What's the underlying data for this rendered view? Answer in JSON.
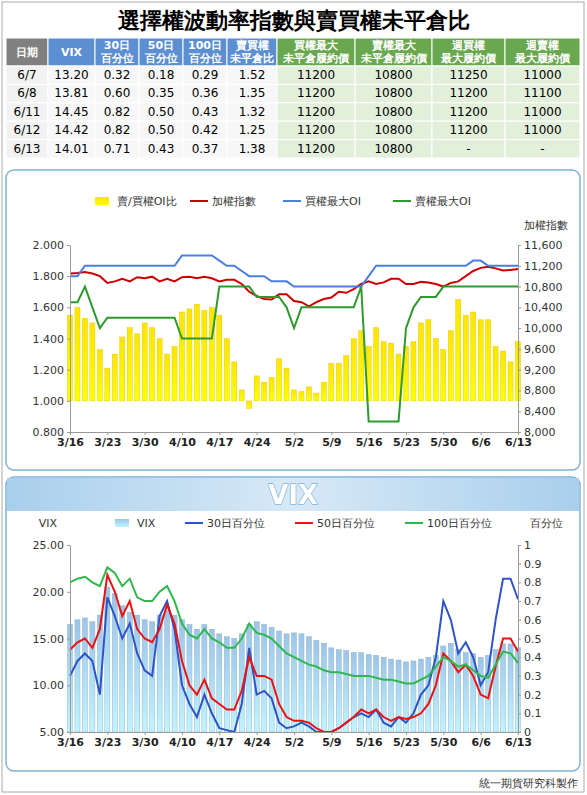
{
  "title": "選擇權波動率指數與賣買權未平倉比",
  "table": {
    "header": [
      [
        "日期"
      ],
      [
        "VIX"
      ],
      [
        "30日",
        "百分位"
      ],
      [
        "50日",
        "百分位"
      ],
      [
        "100日",
        "百分位"
      ],
      [
        "賣買權",
        "未平倉比"
      ],
      [
        "買權最大",
        "未平倉履約價"
      ],
      [
        "賣權最大",
        "未平倉履約價"
      ],
      [
        "週買權",
        "最大履約價"
      ],
      [
        "週賣權",
        "最大履約價"
      ]
    ],
    "rows": [
      [
        "6/7",
        "13.20",
        "0.32",
        "0.18",
        "0.29",
        "1.52",
        "11200",
        "10800",
        "11250",
        "11000"
      ],
      [
        "6/8",
        "13.81",
        "0.60",
        "0.35",
        "0.36",
        "1.35",
        "11200",
        "10800",
        "11200",
        "11100"
      ],
      [
        "6/11",
        "14.45",
        "0.82",
        "0.50",
        "0.43",
        "1.32",
        "11200",
        "10800",
        "11200",
        "11000"
      ],
      [
        "6/12",
        "14.42",
        "0.82",
        "0.50",
        "0.42",
        "1.25",
        "11200",
        "10800",
        "11200",
        "11000"
      ],
      [
        "6/13",
        "14.01",
        "0.71",
        "0.43",
        "0.37",
        "1.38",
        "11200",
        "10800",
        "-",
        "-"
      ]
    ]
  },
  "chart_data": [
    {
      "type": "bar",
      "legend": "top",
      "categories": [
        "3/16",
        null,
        null,
        null,
        null,
        "3/23",
        null,
        null,
        null,
        null,
        "3/30",
        null,
        null,
        null,
        null,
        "4/10",
        null,
        null,
        null,
        null,
        "4/17",
        null,
        null,
        null,
        null,
        "4/24",
        null,
        null,
        null,
        null,
        "5/2",
        null,
        null,
        null,
        null,
        "5/9",
        null,
        null,
        null,
        null,
        "5/16",
        null,
        null,
        null,
        null,
        "5/23",
        null,
        null,
        null,
        null,
        "5/30",
        null,
        null,
        null,
        null,
        "6/6",
        null,
        null,
        null,
        null,
        "6/13"
      ],
      "ylim": [
        0.8,
        2
      ],
      "yticks": [
        {
          "value": 0.8,
          "label": "0.800"
        },
        {
          "value": 1,
          "label": "1.000"
        },
        {
          "value": 1.2,
          "label": "1.200"
        },
        {
          "value": 1.4,
          "label": "1.400"
        },
        {
          "value": 1.6,
          "label": "1.600"
        },
        {
          "value": 1.8,
          "label": "1.800"
        },
        {
          "value": 2,
          "label": "2.000"
        }
      ],
      "y2lim": [
        8000,
        11600
      ],
      "y2ticks": [
        {
          "value": 8000,
          "label": "8,000"
        },
        {
          "value": 8400,
          "label": "8,400"
        },
        {
          "value": 8800,
          "label": "8,800"
        },
        {
          "value": 9200,
          "label": "9,200"
        },
        {
          "value": 9600,
          "label": "9,600"
        },
        {
          "value": 10000,
          "label": "10,000"
        },
        {
          "value": 10400,
          "label": "10,400"
        },
        {
          "value": 10800,
          "label": "10,800"
        },
        {
          "value": 11200,
          "label": "11,200"
        },
        {
          "value": 11600,
          "label": "11,600"
        }
      ],
      "y2label": "加權指數",
      "series": [
        {
          "name": "賣/買權OI比",
          "type": "bar",
          "color": "#ffe400",
          "base": 1,
          "values": [
            1.55,
            1.6,
            1.53,
            1.5,
            1.33,
            1.21,
            1.3,
            1.41,
            1.47,
            1.43,
            1.5,
            1.47,
            1.4,
            1.3,
            1.35,
            1.57,
            1.59,
            1.62,
            1.58,
            1.6,
            1.55,
            1.4,
            1.25,
            1.07,
            0.95,
            1.16,
            1.12,
            1.15,
            1.27,
            1.21,
            1.07,
            1.06,
            1.09,
            1.05,
            1.12,
            1.24,
            1.24,
            1.29,
            1.4,
            1.45,
            1.35,
            1.47,
            1.38,
            1.37,
            1.3,
            1.35,
            1.38,
            1.5,
            1.52,
            1.4,
            1.33,
            1.45,
            1.65,
            1.55,
            1.57,
            1.52,
            1.52,
            1.35,
            1.32,
            1.25,
            1.38
          ]
        },
        {
          "name": "加權指數",
          "type": "line",
          "axis": "y2",
          "color": "#cc0000",
          "values": [
            11050,
            11060,
            11080,
            11050,
            11000,
            10870,
            10900,
            10950,
            10900,
            10980,
            10960,
            10990,
            10900,
            10950,
            10900,
            10980,
            10990,
            10960,
            10990,
            10960,
            10900,
            10930,
            10930,
            10850,
            10700,
            10620,
            10560,
            10550,
            10650,
            10650,
            10520,
            10500,
            10420,
            10500,
            10560,
            10590,
            10700,
            10680,
            10750,
            10850,
            10900,
            10850,
            10880,
            10950,
            10950,
            10850,
            10850,
            10890,
            10880,
            10850,
            10800,
            10870,
            10900,
            11000,
            11100,
            11160,
            11180,
            11150,
            11110,
            11120,
            11140
          ]
        },
        {
          "name": "買權最大OI",
          "type": "line",
          "axis": "y2",
          "color": "#4a7ee0",
          "values": [
            11000,
            11000,
            11200,
            11200,
            11200,
            11200,
            11200,
            11200,
            11200,
            11200,
            11200,
            11200,
            11200,
            11200,
            11200,
            11400,
            11400,
            11400,
            11400,
            11400,
            11300,
            11200,
            11200,
            11100,
            11000,
            11000,
            11000,
            10900,
            10900,
            10900,
            10800,
            10800,
            10800,
            10800,
            10800,
            10800,
            10800,
            10800,
            10800,
            10800,
            11000,
            11200,
            11200,
            11200,
            11200,
            11200,
            11200,
            11200,
            11200,
            11200,
            11200,
            11200,
            11200,
            11200,
            11300,
            11300,
            11200,
            11200,
            11200,
            11200,
            11200
          ]
        },
        {
          "name": "賣權最大OI",
          "type": "line",
          "axis": "y2",
          "color": "#2e9a2e",
          "values": [
            10500,
            10500,
            10800,
            10400,
            10000,
            10200,
            10200,
            10200,
            10200,
            10200,
            10200,
            10200,
            10200,
            10200,
            10200,
            9800,
            9800,
            9800,
            9800,
            9800,
            10800,
            10800,
            10800,
            10800,
            10800,
            10600,
            10600,
            10600,
            10600,
            10400,
            10000,
            10400,
            10400,
            10400,
            10400,
            10400,
            10400,
            10400,
            10400,
            10800,
            8200,
            8200,
            8200,
            8200,
            8200,
            10000,
            10400,
            10600,
            10600,
            10600,
            10800,
            10800,
            10800,
            10800,
            10800,
            10800,
            10800,
            10800,
            10800,
            10800,
            10800
          ]
        }
      ]
    },
    {
      "type": "bar",
      "title": "VIX",
      "legend": "top",
      "categories": [
        "3/16",
        null,
        null,
        null,
        null,
        "3/23",
        null,
        null,
        null,
        null,
        "3/30",
        null,
        null,
        null,
        null,
        "4/10",
        null,
        null,
        null,
        null,
        "4/17",
        null,
        null,
        null,
        null,
        "4/24",
        null,
        null,
        null,
        null,
        "5/2",
        null,
        null,
        null,
        null,
        "5/9",
        null,
        null,
        null,
        null,
        "5/16",
        null,
        null,
        null,
        null,
        "5/23",
        null,
        null,
        null,
        null,
        "5/30",
        null,
        null,
        null,
        null,
        "6/6",
        null,
        null,
        null,
        null,
        "6/13"
      ],
      "ylim": [
        5,
        25
      ],
      "yticks": [
        {
          "value": 5,
          "label": "5.00"
        },
        {
          "value": 10,
          "label": "10.00"
        },
        {
          "value": 15,
          "label": "15.00"
        },
        {
          "value": 20,
          "label": "20.00"
        },
        {
          "value": 25,
          "label": "25.00"
        }
      ],
      "y2lim": [
        0,
        1
      ],
      "y2ticks": [
        0,
        0.1,
        0.2,
        0.3,
        0.4,
        0.5,
        0.6,
        0.7,
        0.8,
        0.9,
        1
      ],
      "ylabel": "VIX",
      "y2label": "百分位",
      "series": [
        {
          "name": "VIX",
          "type": "bar",
          "color": "#9cc5e8",
          "values": [
            16.5,
            17.0,
            17.2,
            16.8,
            17.5,
            20.5,
            19.8,
            18.5,
            17.8,
            17.5,
            17.0,
            16.8,
            17.5,
            18.0,
            17.5,
            17.0,
            16.5,
            16.0,
            16.5,
            16.0,
            15.5,
            15.2,
            15.0,
            15.5,
            16.5,
            16.8,
            16.5,
            16.2,
            15.8,
            15.5,
            15.6,
            15.5,
            15.2,
            14.8,
            14.5,
            14.0,
            13.8,
            13.7,
            13.5,
            13.5,
            13.3,
            13.2,
            13.0,
            12.8,
            12.7,
            12.5,
            12.6,
            12.8,
            13.0,
            13.2,
            14.2,
            14.5,
            13.8,
            13.5,
            13.4,
            13.0,
            13.2,
            13.81,
            14.45,
            14.42,
            14.01
          ]
        },
        {
          "name": "30日百分位",
          "type": "line",
          "axis": "y2",
          "color": "#2e54c6",
          "values": [
            0.3,
            0.38,
            0.42,
            0.38,
            0.2,
            0.72,
            0.62,
            0.5,
            0.58,
            0.42,
            0.33,
            0.3,
            0.62,
            0.7,
            0.55,
            0.25,
            0.15,
            0.08,
            0.2,
            0.1,
            0.02,
            0.01,
            0.0,
            0.15,
            0.45,
            0.2,
            0.22,
            0.18,
            0.05,
            0.02,
            0.03,
            0.05,
            0.03,
            0.0,
            0.0,
            0.0,
            0.02,
            0.05,
            0.08,
            0.1,
            0.08,
            0.12,
            0.05,
            0.03,
            0.08,
            0.05,
            0.1,
            0.2,
            0.25,
            0.4,
            0.7,
            0.6,
            0.42,
            0.48,
            0.4,
            0.25,
            0.32,
            0.6,
            0.82,
            0.82,
            0.71
          ]
        },
        {
          "name": "50日百分位",
          "type": "line",
          "axis": "y2",
          "color": "#ee1111",
          "values": [
            0.44,
            0.48,
            0.5,
            0.45,
            0.55,
            0.84,
            0.75,
            0.62,
            0.7,
            0.55,
            0.5,
            0.48,
            0.55,
            0.68,
            0.58,
            0.38,
            0.25,
            0.2,
            0.28,
            0.18,
            0.15,
            0.12,
            0.12,
            0.22,
            0.4,
            0.3,
            0.3,
            0.28,
            0.15,
            0.08,
            0.06,
            0.06,
            0.05,
            0.02,
            0.0,
            0.0,
            0.02,
            0.05,
            0.08,
            0.12,
            0.1,
            0.12,
            0.08,
            0.06,
            0.08,
            0.07,
            0.08,
            0.1,
            0.15,
            0.25,
            0.42,
            0.38,
            0.32,
            0.36,
            0.3,
            0.2,
            0.18,
            0.35,
            0.5,
            0.5,
            0.43
          ]
        },
        {
          "name": "100日百分位",
          "type": "line",
          "axis": "y2",
          "color": "#2eb84c",
          "values": [
            0.8,
            0.82,
            0.83,
            0.8,
            0.78,
            0.88,
            0.85,
            0.78,
            0.82,
            0.72,
            0.7,
            0.7,
            0.75,
            0.78,
            0.7,
            0.58,
            0.52,
            0.5,
            0.55,
            0.5,
            0.48,
            0.45,
            0.45,
            0.5,
            0.58,
            0.53,
            0.52,
            0.5,
            0.46,
            0.42,
            0.4,
            0.38,
            0.36,
            0.35,
            0.33,
            0.32,
            0.32,
            0.31,
            0.3,
            0.3,
            0.3,
            0.29,
            0.28,
            0.28,
            0.27,
            0.26,
            0.26,
            0.28,
            0.3,
            0.35,
            0.4,
            0.38,
            0.35,
            0.36,
            0.33,
            0.3,
            0.29,
            0.36,
            0.43,
            0.42,
            0.37
          ]
        }
      ]
    }
  ],
  "footer": "統一期貨研究科製作"
}
